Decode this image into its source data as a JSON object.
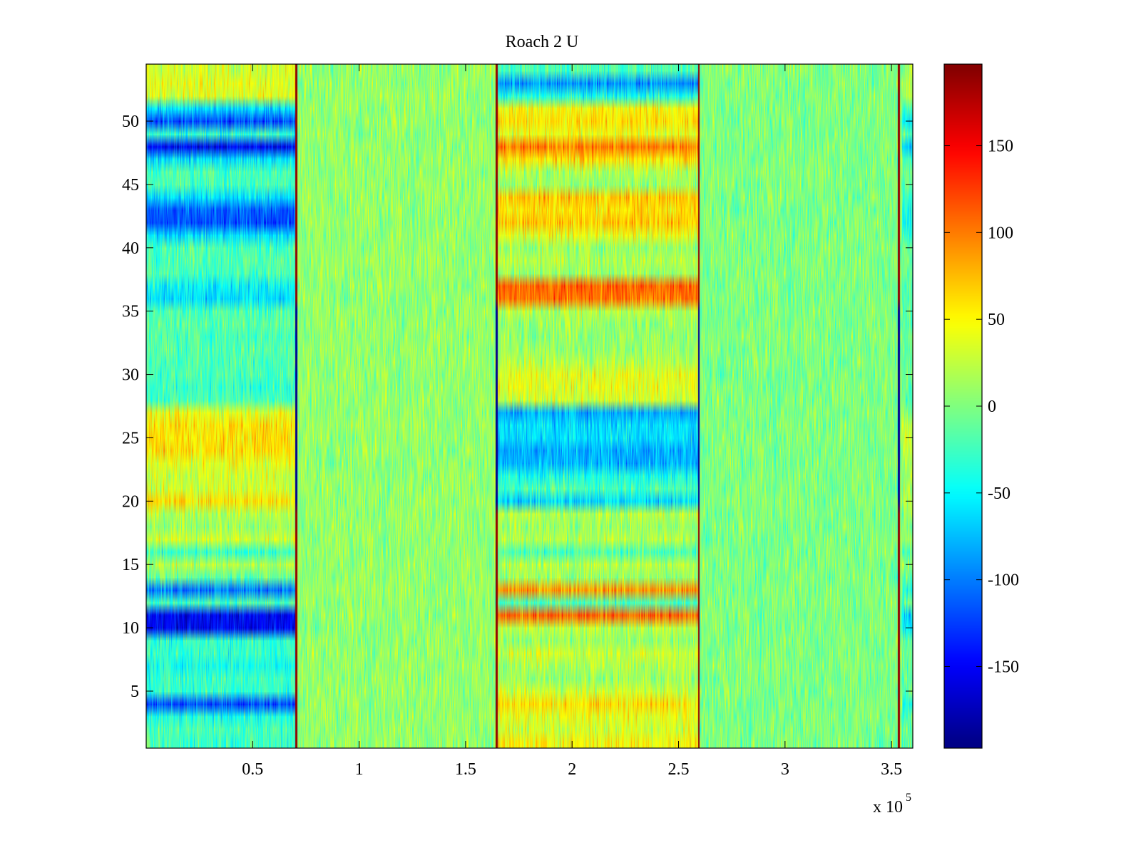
{
  "chart_data": {
    "type": "heatmap",
    "title": "Roach 2 U",
    "colormap": "jet",
    "xlim": [
      0,
      360000
    ],
    "ylim": [
      0.5,
      54.5
    ],
    "x_ticks": [
      0.5,
      1,
      1.5,
      2,
      2.5,
      3,
      3.5
    ],
    "x_tick_labels": [
      "0.5",
      "1",
      "1.5",
      "2",
      "2.5",
      "3",
      "3.5"
    ],
    "x_exponent_base": "x 10",
    "x_exponent_power": "5",
    "y_ticks": [
      5,
      10,
      15,
      20,
      25,
      30,
      35,
      40,
      45,
      50
    ],
    "y_tick_labels": [
      "5",
      "10",
      "15",
      "20",
      "25",
      "30",
      "35",
      "40",
      "45",
      "50"
    ],
    "clim": [
      -197,
      197
    ],
    "colorbar_ticks": [
      150,
      100,
      50,
      0,
      -50,
      -100,
      -150
    ],
    "colorbar_tick_labels": [
      "150",
      "100",
      "50",
      "0",
      "-50",
      "-100",
      "-150"
    ],
    "segment_boundaries_x": [
      0,
      71000,
      165000,
      260000,
      355000,
      360000
    ],
    "row_means_by_segment": {
      "seg1": {
        "1": -25,
        "2": -20,
        "3": -40,
        "4": -120,
        "5": -30,
        "6": -25,
        "7": -40,
        "8": -30,
        "9": -30,
        "10": -150,
        "11": -150,
        "12": -20,
        "13": -100,
        "14": -10,
        "15": 20,
        "16": -30,
        "17": 30,
        "18": 10,
        "19": 20,
        "20": 60,
        "21": 30,
        "22": 30,
        "23": 40,
        "24": 60,
        "25": 60,
        "26": 60,
        "27": 40,
        "28": -20,
        "29": -30,
        "30": -20,
        "31": -20,
        "32": -15,
        "33": -20,
        "34": -15,
        "35": -20,
        "36": -60,
        "37": -50,
        "38": -20,
        "39": -15,
        "40": -20,
        "41": -60,
        "42": -120,
        "43": -110,
        "44": -60,
        "45": -20,
        "46": -20,
        "47": -60,
        "48": -150,
        "49": -30,
        "50": -120,
        "51": -60,
        "52": 40,
        "53": 40,
        "54": 30
      },
      "seg3": {
        "1": 50,
        "2": 30,
        "3": 40,
        "4": 60,
        "5": 30,
        "6": 10,
        "7": 20,
        "8": 30,
        "9": 10,
        "10": 20,
        "11": 110,
        "12": -20,
        "13": 90,
        "14": 10,
        "15": 20,
        "16": -20,
        "17": 20,
        "18": 10,
        "19": 20,
        "20": -60,
        "21": -20,
        "22": -40,
        "23": -80,
        "24": -80,
        "25": -60,
        "26": -60,
        "27": -80,
        "28": 30,
        "29": 40,
        "30": 40,
        "31": 20,
        "32": 10,
        "33": 10,
        "34": 10,
        "35": 20,
        "36": 100,
        "37": 110,
        "38": 10,
        "39": 20,
        "40": 10,
        "41": 40,
        "42": 70,
        "43": 60,
        "44": 70,
        "45": 10,
        "46": 20,
        "47": 60,
        "48": 100,
        "49": 40,
        "50": 60,
        "51": 50,
        "52": -40,
        "53": -90,
        "54": -20
      }
    },
    "vertical_line_x": [
      70500,
      164500,
      259500,
      353500
    ]
  }
}
